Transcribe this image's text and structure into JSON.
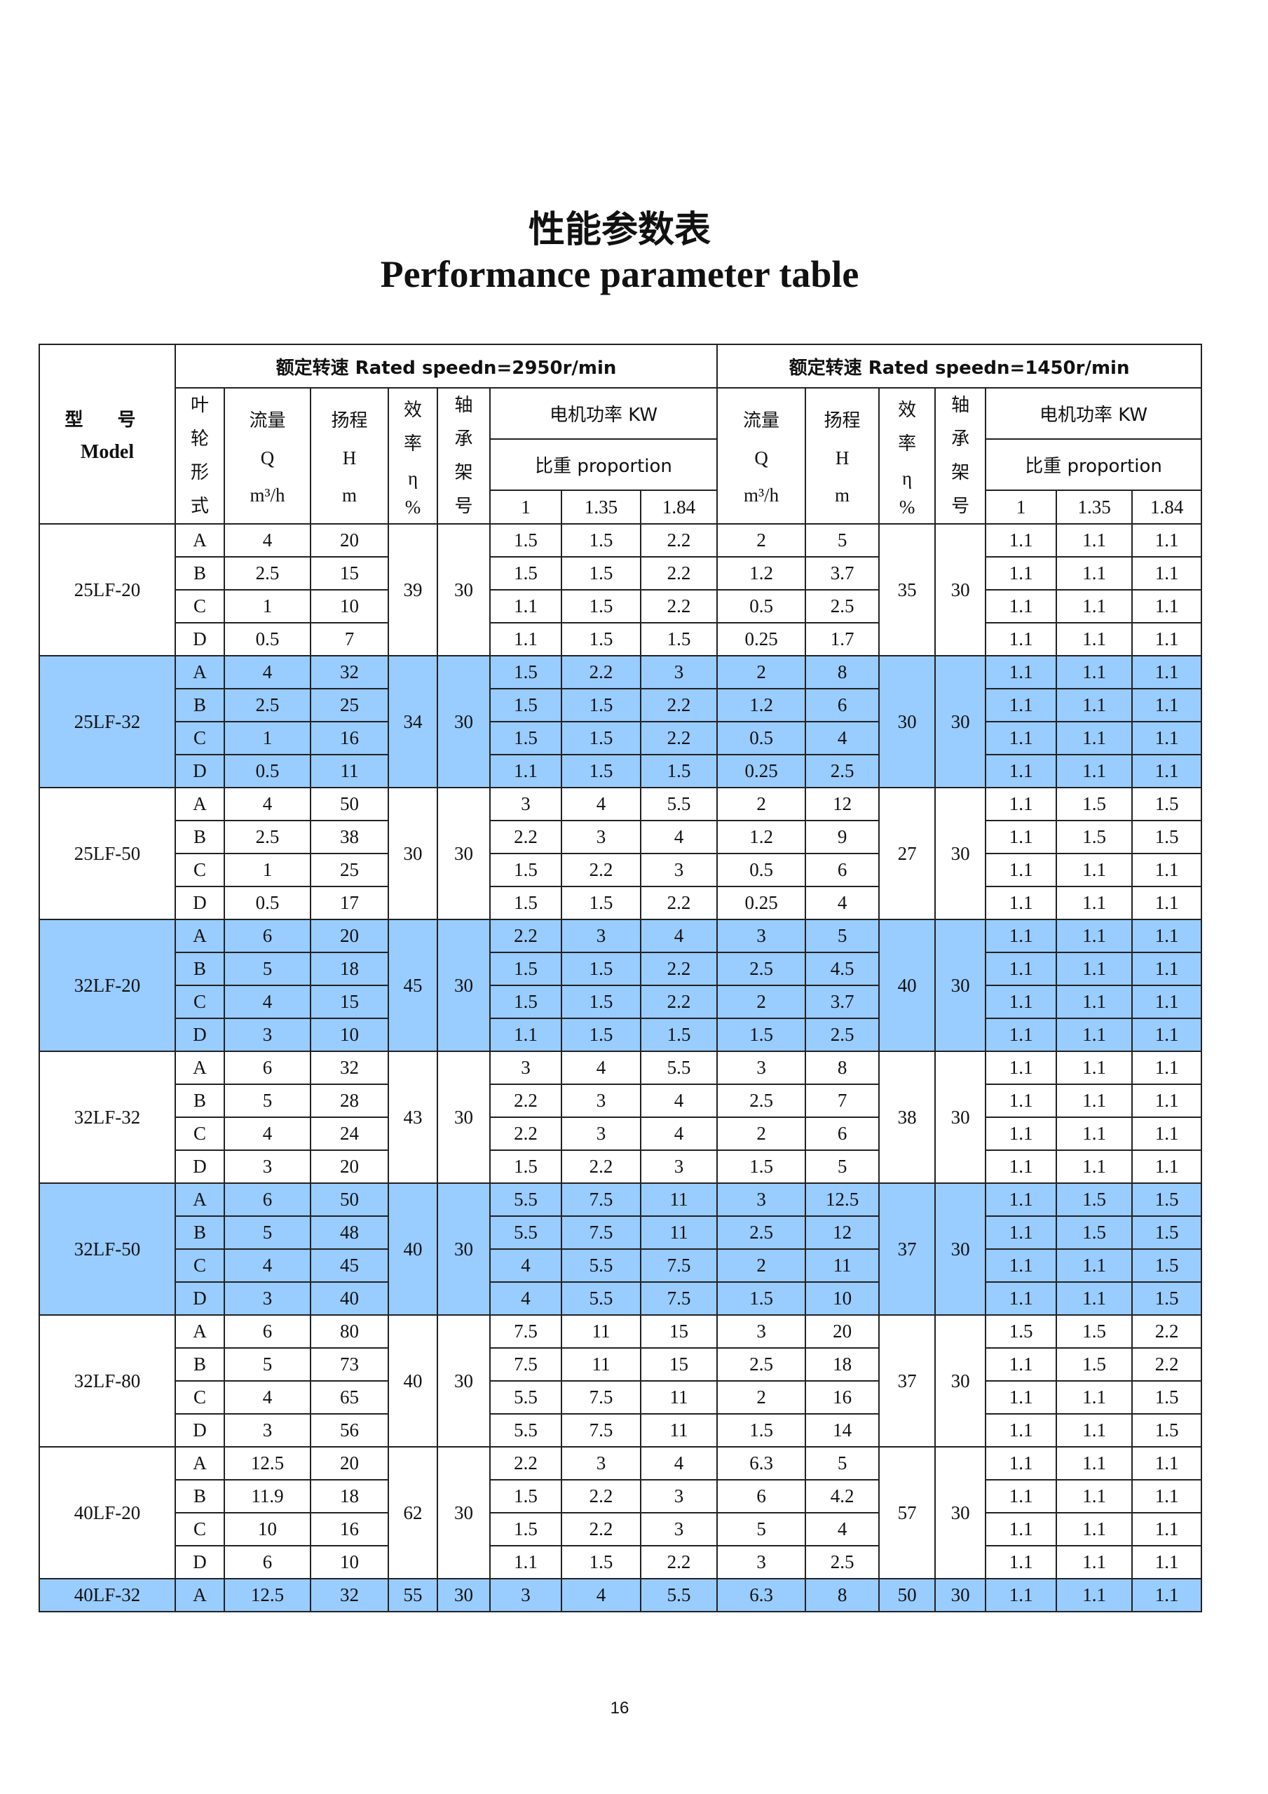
{
  "title_cn": "性能参数表",
  "title_en": "Performance parameter table",
  "page_number": "16",
  "highlight_color": "#99ccff",
  "header": {
    "model_cn": "型 号",
    "model_en": "Model",
    "speed1": "额定转速 Rated speedn=2950r/min",
    "speed2": "额定转速 Rated speedn=1450r/min",
    "impeller": "叶轮形式",
    "flow": {
      "cn": "流量",
      "sym": "Q",
      "unit": "m³/h"
    },
    "head": {
      "cn": "扬程",
      "sym": "H",
      "unit": "m"
    },
    "efficiency": {
      "cn": "效率",
      "sym": "η",
      "unit": "%"
    },
    "bearing": "轴承架号",
    "motor_power": "电机功率 KW",
    "proportion": "比重 proportion",
    "gravities": [
      "1",
      "1.35",
      "1.84"
    ]
  },
  "models": [
    {
      "name": "25LF-20",
      "highlight": false,
      "eff1": "39",
      "bearing1": "30",
      "eff2": "35",
      "bearing2": "30",
      "rows": [
        [
          "A",
          "4",
          "20",
          "1.5",
          "1.5",
          "2.2",
          "2",
          "5",
          "1.1",
          "1.1",
          "1.1"
        ],
        [
          "B",
          "2.5",
          "15",
          "1.5",
          "1.5",
          "2.2",
          "1.2",
          "3.7",
          "1.1",
          "1.1",
          "1.1"
        ],
        [
          "C",
          "1",
          "10",
          "1.1",
          "1.5",
          "2.2",
          "0.5",
          "2.5",
          "1.1",
          "1.1",
          "1.1"
        ],
        [
          "D",
          "0.5",
          "7",
          "1.1",
          "1.5",
          "1.5",
          "0.25",
          "1.7",
          "1.1",
          "1.1",
          "1.1"
        ]
      ]
    },
    {
      "name": "25LF-32",
      "highlight": true,
      "eff1": "34",
      "bearing1": "30",
      "eff2": "30",
      "bearing2": "30",
      "rows": [
        [
          "A",
          "4",
          "32",
          "1.5",
          "2.2",
          "3",
          "2",
          "8",
          "1.1",
          "1.1",
          "1.1"
        ],
        [
          "B",
          "2.5",
          "25",
          "1.5",
          "1.5",
          "2.2",
          "1.2",
          "6",
          "1.1",
          "1.1",
          "1.1"
        ],
        [
          "C",
          "1",
          "16",
          "1.5",
          "1.5",
          "2.2",
          "0.5",
          "4",
          "1.1",
          "1.1",
          "1.1"
        ],
        [
          "D",
          "0.5",
          "11",
          "1.1",
          "1.5",
          "1.5",
          "0.25",
          "2.5",
          "1.1",
          "1.1",
          "1.1"
        ]
      ]
    },
    {
      "name": "25LF-50",
      "highlight": false,
      "eff1": "30",
      "bearing1": "30",
      "eff2": "27",
      "bearing2": "30",
      "rows": [
        [
          "A",
          "4",
          "50",
          "3",
          "4",
          "5.5",
          "2",
          "12",
          "1.1",
          "1.5",
          "1.5"
        ],
        [
          "B",
          "2.5",
          "38",
          "2.2",
          "3",
          "4",
          "1.2",
          "9",
          "1.1",
          "1.5",
          "1.5"
        ],
        [
          "C",
          "1",
          "25",
          "1.5",
          "2.2",
          "3",
          "0.5",
          "6",
          "1.1",
          "1.1",
          "1.1"
        ],
        [
          "D",
          "0.5",
          "17",
          "1.5",
          "1.5",
          "2.2",
          "0.25",
          "4",
          "1.1",
          "1.1",
          "1.1"
        ]
      ]
    },
    {
      "name": "32LF-20",
      "highlight": true,
      "eff1": "45",
      "bearing1": "30",
      "eff2": "40",
      "bearing2": "30",
      "rows": [
        [
          "A",
          "6",
          "20",
          "2.2",
          "3",
          "4",
          "3",
          "5",
          "1.1",
          "1.1",
          "1.1"
        ],
        [
          "B",
          "5",
          "18",
          "1.5",
          "1.5",
          "2.2",
          "2.5",
          "4.5",
          "1.1",
          "1.1",
          "1.1"
        ],
        [
          "C",
          "4",
          "15",
          "1.5",
          "1.5",
          "2.2",
          "2",
          "3.7",
          "1.1",
          "1.1",
          "1.1"
        ],
        [
          "D",
          "3",
          "10",
          "1.1",
          "1.5",
          "1.5",
          "1.5",
          "2.5",
          "1.1",
          "1.1",
          "1.1"
        ]
      ]
    },
    {
      "name": "32LF-32",
      "highlight": false,
      "eff1": "43",
      "bearing1": "30",
      "eff2": "38",
      "bearing2": "30",
      "rows": [
        [
          "A",
          "6",
          "32",
          "3",
          "4",
          "5.5",
          "3",
          "8",
          "1.1",
          "1.1",
          "1.1"
        ],
        [
          "B",
          "5",
          "28",
          "2.2",
          "3",
          "4",
          "2.5",
          "7",
          "1.1",
          "1.1",
          "1.1"
        ],
        [
          "C",
          "4",
          "24",
          "2.2",
          "3",
          "4",
          "2",
          "6",
          "1.1",
          "1.1",
          "1.1"
        ],
        [
          "D",
          "3",
          "20",
          "1.5",
          "2.2",
          "3",
          "1.5",
          "5",
          "1.1",
          "1.1",
          "1.1"
        ]
      ]
    },
    {
      "name": "32LF-50",
      "highlight": true,
      "eff1": "40",
      "bearing1": "30",
      "eff2": "37",
      "bearing2": "30",
      "rows": [
        [
          "A",
          "6",
          "50",
          "5.5",
          "7.5",
          "11",
          "3",
          "12.5",
          "1.1",
          "1.5",
          "1.5"
        ],
        [
          "B",
          "5",
          "48",
          "5.5",
          "7.5",
          "11",
          "2.5",
          "12",
          "1.1",
          "1.5",
          "1.5"
        ],
        [
          "C",
          "4",
          "45",
          "4",
          "5.5",
          "7.5",
          "2",
          "11",
          "1.1",
          "1.1",
          "1.5"
        ],
        [
          "D",
          "3",
          "40",
          "4",
          "5.5",
          "7.5",
          "1.5",
          "10",
          "1.1",
          "1.1",
          "1.5"
        ]
      ]
    },
    {
      "name": "32LF-80",
      "highlight": false,
      "eff1": "40",
      "bearing1": "30",
      "eff2": "37",
      "bearing2": "30",
      "rows": [
        [
          "A",
          "6",
          "80",
          "7.5",
          "11",
          "15",
          "3",
          "20",
          "1.5",
          "1.5",
          "2.2"
        ],
        [
          "B",
          "5",
          "73",
          "7.5",
          "11",
          "15",
          "2.5",
          "18",
          "1.1",
          "1.5",
          "2.2"
        ],
        [
          "C",
          "4",
          "65",
          "5.5",
          "7.5",
          "11",
          "2",
          "16",
          "1.1",
          "1.1",
          "1.5"
        ],
        [
          "D",
          "3",
          "56",
          "5.5",
          "7.5",
          "11",
          "1.5",
          "14",
          "1.1",
          "1.1",
          "1.5"
        ]
      ]
    },
    {
      "name": "40LF-20",
      "highlight": false,
      "eff1": "62",
      "bearing1": "30",
      "eff2": "57",
      "bearing2": "30",
      "rows": [
        [
          "A",
          "12.5",
          "20",
          "2.2",
          "3",
          "4",
          "6.3",
          "5",
          "1.1",
          "1.1",
          "1.1"
        ],
        [
          "B",
          "11.9",
          "18",
          "1.5",
          "2.2",
          "3",
          "6",
          "4.2",
          "1.1",
          "1.1",
          "1.1"
        ],
        [
          "C",
          "10",
          "16",
          "1.5",
          "2.2",
          "3",
          "5",
          "4",
          "1.1",
          "1.1",
          "1.1"
        ],
        [
          "D",
          "6",
          "10",
          "1.1",
          "1.5",
          "2.2",
          "3",
          "2.5",
          "1.1",
          "1.1",
          "1.1"
        ]
      ]
    },
    {
      "name": "40LF-32",
      "highlight": true,
      "eff1": "55",
      "bearing1": "30",
      "eff2": "50",
      "bearing2": "30",
      "rows": [
        [
          "A",
          "12.5",
          "32",
          "3",
          "4",
          "5.5",
          "6.3",
          "8",
          "1.1",
          "1.1",
          "1.1"
        ]
      ]
    }
  ]
}
